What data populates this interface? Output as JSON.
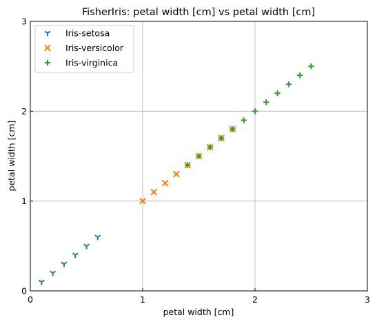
{
  "chart_data": {
    "type": "scatter",
    "title": "FisherIris: petal width [cm] vs petal width [cm]",
    "xlabel": "petal width [cm]",
    "ylabel": "petal width [cm]",
    "xlim": [
      0,
      3
    ],
    "ylim": [
      0,
      3
    ],
    "xticks": [
      "0",
      "1",
      "2",
      "3"
    ],
    "yticks": [
      "0",
      "1",
      "2",
      "3"
    ],
    "tick_values": [
      0,
      1,
      2,
      3
    ],
    "grid": true,
    "grid_values": [
      1,
      2
    ],
    "legend_position": "upper-left",
    "series": [
      {
        "name": "Iris-setosa",
        "marker": "tri_down",
        "color": "#1f77b4",
        "points": [
          [
            0.1,
            0.1
          ],
          [
            0.2,
            0.2
          ],
          [
            0.3,
            0.3
          ],
          [
            0.4,
            0.4
          ],
          [
            0.5,
            0.5
          ],
          [
            0.6,
            0.6
          ]
        ]
      },
      {
        "name": "Iris-versicolor",
        "marker": "x",
        "color": "#ff7f0e",
        "points": [
          [
            1.0,
            1.0
          ],
          [
            1.1,
            1.1
          ],
          [
            1.2,
            1.2
          ],
          [
            1.3,
            1.3
          ],
          [
            1.4,
            1.4
          ],
          [
            1.5,
            1.5
          ],
          [
            1.6,
            1.6
          ],
          [
            1.7,
            1.7
          ],
          [
            1.8,
            1.8
          ]
        ]
      },
      {
        "name": "Iris-virginica",
        "marker": "plus",
        "color": "#2ca02c",
        "points": [
          [
            1.4,
            1.4
          ],
          [
            1.5,
            1.5
          ],
          [
            1.6,
            1.6
          ],
          [
            1.7,
            1.7
          ],
          [
            1.8,
            1.8
          ],
          [
            1.9,
            1.9
          ],
          [
            2.0,
            2.0
          ],
          [
            2.1,
            2.1
          ],
          [
            2.2,
            2.2
          ],
          [
            2.3,
            2.3
          ],
          [
            2.4,
            2.4
          ],
          [
            2.5,
            2.5
          ]
        ]
      }
    ]
  }
}
